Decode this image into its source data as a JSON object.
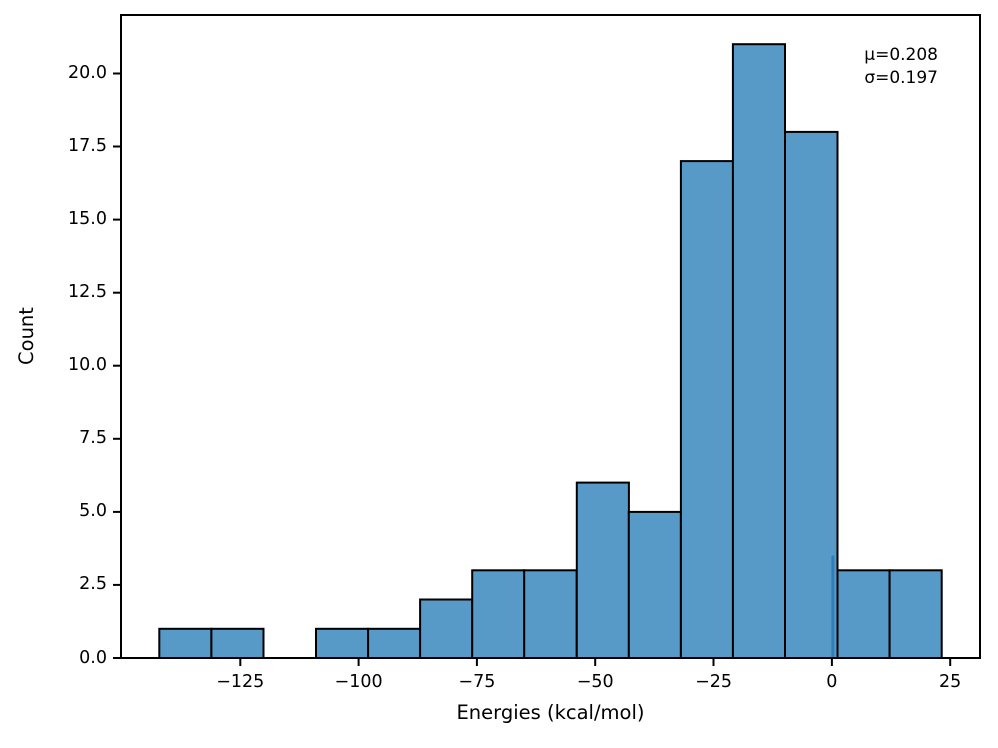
{
  "figure": {
    "background": "#ffffff",
    "xlabel": "Energies (kcal/mol)",
    "ylabel": "Count",
    "annotation": {
      "lines": [
        "μ=0.208",
        "σ=0.197"
      ]
    }
  },
  "colors": {
    "bar_fill": "#5799C7",
    "bar_edge": "#000000",
    "overlay_fill": "#1f77b4",
    "axis": "#000000",
    "text": "#000000"
  },
  "chart_data": {
    "type": "bar",
    "subtype": "histogram",
    "title": "",
    "xlabel": "Energies (kcal/mol)",
    "ylabel": "Count",
    "xlim": [
      -150.2,
      31.3
    ],
    "ylim": [
      0,
      22.0
    ],
    "grid": false,
    "legend": false,
    "annotation_stats": {
      "mu": 0.208,
      "sigma": 0.197
    },
    "histogram": {
      "bin_edges": [
        -142.1,
        -131.1,
        -120.1,
        -109.0,
        -98.0,
        -87.0,
        -76.0,
        -65.0,
        -53.9,
        -42.9,
        -31.9,
        -20.9,
        -9.9,
        1.2,
        12.2,
        23.2
      ],
      "counts": [
        1,
        1,
        0,
        1,
        1,
        2,
        3,
        3,
        6,
        5,
        17,
        21,
        18,
        3,
        3
      ],
      "total_count": 85
    },
    "overlay_spike": {
      "x_center": 0.22,
      "width": 0.62,
      "height": 3.5,
      "opacity": 0.75
    },
    "xticks": {
      "values": [
        -125,
        -100,
        -75,
        -50,
        -25,
        0,
        25
      ],
      "labels": [
        "−125",
        "−100",
        "−75",
        "−50",
        "−25",
        "0",
        "25"
      ]
    },
    "yticks": {
      "values": [
        0,
        2.5,
        5,
        7.5,
        10,
        12.5,
        15,
        17.5,
        20
      ],
      "labels": [
        "0.0",
        "2.5",
        "5.0",
        "7.5",
        "10.0",
        "12.5",
        "15.0",
        "17.5",
        "20.0"
      ]
    }
  }
}
